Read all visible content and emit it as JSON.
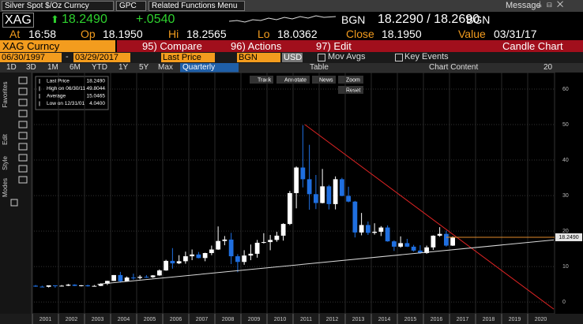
{
  "toolbar": {
    "security": "Silver Spot $/Oz Curncy",
    "gpc": "GPC",
    "related": "Related Functions Menu",
    "message": "Message"
  },
  "quote": {
    "ticker": "XAG",
    "last": "18.2490",
    "change": "+.0540",
    "source": "BGN",
    "bid_ask": "18.2290 / 18.2690",
    "source2": "BGN"
  },
  "stats": [
    [
      "At",
      "16:58"
    ],
    [
      "Op",
      "18.1950"
    ],
    [
      "Hi",
      "18.2565"
    ],
    [
      "Lo",
      "18.0362"
    ],
    [
      "Close",
      "18.1950"
    ],
    [
      "Value",
      "03/31/17"
    ]
  ],
  "command": {
    "name": "XAG Curncy",
    "compare": "95) Compare",
    "actions": "96) Actions",
    "edit": "97) Edit",
    "title": "Candle Chart"
  },
  "controls": {
    "start": "06/30/1997",
    "dash": "-",
    "end": "03/29/2017",
    "field": "Last Price",
    "source": "BGN",
    "currency": "USD",
    "mov_avgs": "Mov Avgs",
    "key_events": "Key Events"
  },
  "periods": [
    "1D",
    "3D",
    "1M",
    "6M",
    "YTD",
    "1Y",
    "5Y",
    "Max"
  ],
  "frequency": "Quarterly",
  "table": "Table",
  "chart_content": "Chart Content",
  "zoom_setting": "20",
  "tools": {
    "track": "Track",
    "annotate": "Annotate",
    "news": "News",
    "zoom": "Zoom",
    "reset": "Reset"
  },
  "side_tabs": [
    "Favorites",
    "Edit",
    "Style",
    "Modes"
  ],
  "chart_data": {
    "type": "candlestick",
    "legend": [
      [
        "Last Price",
        "18.2490"
      ],
      [
        "High on 06/30/11",
        "49.8044"
      ],
      [
        "Average",
        "15.0465"
      ],
      [
        "Low on 12/31/01",
        "4.0400"
      ]
    ],
    "up_color": "#ffffff",
    "down_color": "#1f6fe0",
    "x": [
      2001.125,
      2001.375,
      2001.625,
      2001.875,
      2002.125,
      2002.375,
      2002.625,
      2002.875,
      2003.125,
      2003.375,
      2003.625,
      2003.875,
      2004.125,
      2004.375,
      2004.625,
      2004.875,
      2005.125,
      2005.375,
      2005.625,
      2005.875,
      2006.125,
      2006.375,
      2006.625,
      2006.875,
      2007.125,
      2007.375,
      2007.625,
      2007.875,
      2008.125,
      2008.375,
      2008.625,
      2008.875,
      2009.125,
      2009.375,
      2009.625,
      2009.875,
      2010.125,
      2010.375,
      2010.625,
      2010.875,
      2011.125,
      2011.375,
      2011.625,
      2011.875,
      2012.125,
      2012.375,
      2012.625,
      2012.875,
      2013.125,
      2013.375,
      2013.625,
      2013.875,
      2014.125,
      2014.375,
      2014.625,
      2014.875,
      2015.125,
      2015.375,
      2015.625,
      2015.875,
      2016.125,
      2016.375,
      2016.625,
      2016.875,
      2017.125
    ],
    "open": [
      4.6,
      4.35,
      4.3,
      4.7,
      4.6,
      4.6,
      4.9,
      4.55,
      4.7,
      4.45,
      4.55,
      5.15,
      5.95,
      7.6,
      5.85,
      6.9,
      6.8,
      7.1,
      7.0,
      7.5,
      8.9,
      11.6,
      10.9,
      11.5,
      12.9,
      13.4,
      12.4,
      13.8,
      14.8,
      17.2,
      17.6,
      12.9,
      11.3,
      13.1,
      13.6,
      16.7,
      16.9,
      17.5,
      18.7,
      22.0,
      30.7,
      37.9,
      34.6,
      30.4,
      27.9,
      32.6,
      27.6,
      34.6,
      29.9,
      28.3,
      19.6,
      21.7,
      19.5,
      19.8,
      21.0,
      17.1,
      15.6,
      16.6,
      15.6,
      14.5,
      13.8,
      15.4,
      18.7,
      19.2,
      15.9
    ],
    "high": [
      4.8,
      4.6,
      4.7,
      4.7,
      4.8,
      5.1,
      5.0,
      4.8,
      4.9,
      4.8,
      5.3,
      6.0,
      7.6,
      8.5,
      7.2,
      8.0,
      7.6,
      7.6,
      7.6,
      9.2,
      11.9,
      15.2,
      13.2,
      14.2,
      14.8,
      14.1,
      13.9,
      15.9,
      21.3,
      18.6,
      19.5,
      13.5,
      14.6,
      16.2,
      17.5,
      19.4,
      18.9,
      19.8,
      22.2,
      31.3,
      38.2,
      49.8,
      44.3,
      35.8,
      37.5,
      33.0,
      35.4,
      35.0,
      32.5,
      28.5,
      25.1,
      22.7,
      22.2,
      21.4,
      21.6,
      17.4,
      18.5,
      17.8,
      16.1,
      16.0,
      15.9,
      18.8,
      21.1,
      20.1,
      18.5
    ],
    "low": [
      4.3,
      4.2,
      4.1,
      4.05,
      4.4,
      4.5,
      4.5,
      4.4,
      4.35,
      4.4,
      4.5,
      4.8,
      5.9,
      5.5,
      5.8,
      6.3,
      6.4,
      6.8,
      6.8,
      7.4,
      8.8,
      9.4,
      10.7,
      10.8,
      11.8,
      12.3,
      11.5,
      13.2,
      14.7,
      16.0,
      10.7,
      8.4,
      10.5,
      11.8,
      12.5,
      16.5,
      14.6,
      17.0,
      17.3,
      21.7,
      26.4,
      32.3,
      26.0,
      26.2,
      27.8,
      26.1,
      26.1,
      29.8,
      28.1,
      18.2,
      18.8,
      18.9,
      19.0,
      18.6,
      17.0,
      14.4,
      15.3,
      15.5,
      14.2,
      13.6,
      13.6,
      14.7,
      18.4,
      15.6,
      15.8
    ],
    "close": [
      4.35,
      4.3,
      4.7,
      4.6,
      4.6,
      4.9,
      4.55,
      4.7,
      4.45,
      4.55,
      5.15,
      5.95,
      7.6,
      5.85,
      6.9,
      6.8,
      7.1,
      7.0,
      7.5,
      8.9,
      11.6,
      10.9,
      11.5,
      12.9,
      13.4,
      12.4,
      13.8,
      14.8,
      17.2,
      17.6,
      12.9,
      11.3,
      13.1,
      13.6,
      16.7,
      16.9,
      17.5,
      18.7,
      22.0,
      30.7,
      37.9,
      34.6,
      30.4,
      27.9,
      32.6,
      27.6,
      34.6,
      29.9,
      28.3,
      19.6,
      21.7,
      19.5,
      19.8,
      21.0,
      17.1,
      15.6,
      16.6,
      15.6,
      14.5,
      13.8,
      15.4,
      18.7,
      19.2,
      15.9,
      18.25
    ],
    "last_value": 18.249,
    "last_value_label": "18.2490",
    "last_color": "#e08a2c",
    "trendlines": [
      {
        "x": [
          2011.45,
          2021
        ],
        "y": [
          50,
          -2
        ],
        "color": "#e02424"
      },
      {
        "x": [
          2003.5,
          2021
        ],
        "y": [
          5,
          17.5
        ],
        "color": "#d8d8d8"
      }
    ],
    "xlim": [
      2001,
      2021
    ],
    "xticks": [
      2001,
      2002,
      2003,
      2004,
      2005,
      2006,
      2007,
      2008,
      2009,
      2010,
      2011,
      2012,
      2013,
      2014,
      2015,
      2016,
      2017,
      2018,
      2019,
      2020
    ],
    "ylim": [
      -3.3,
      64
    ],
    "yticks": [
      0,
      10,
      20,
      30,
      40,
      50,
      60
    ],
    "grid": true
  }
}
